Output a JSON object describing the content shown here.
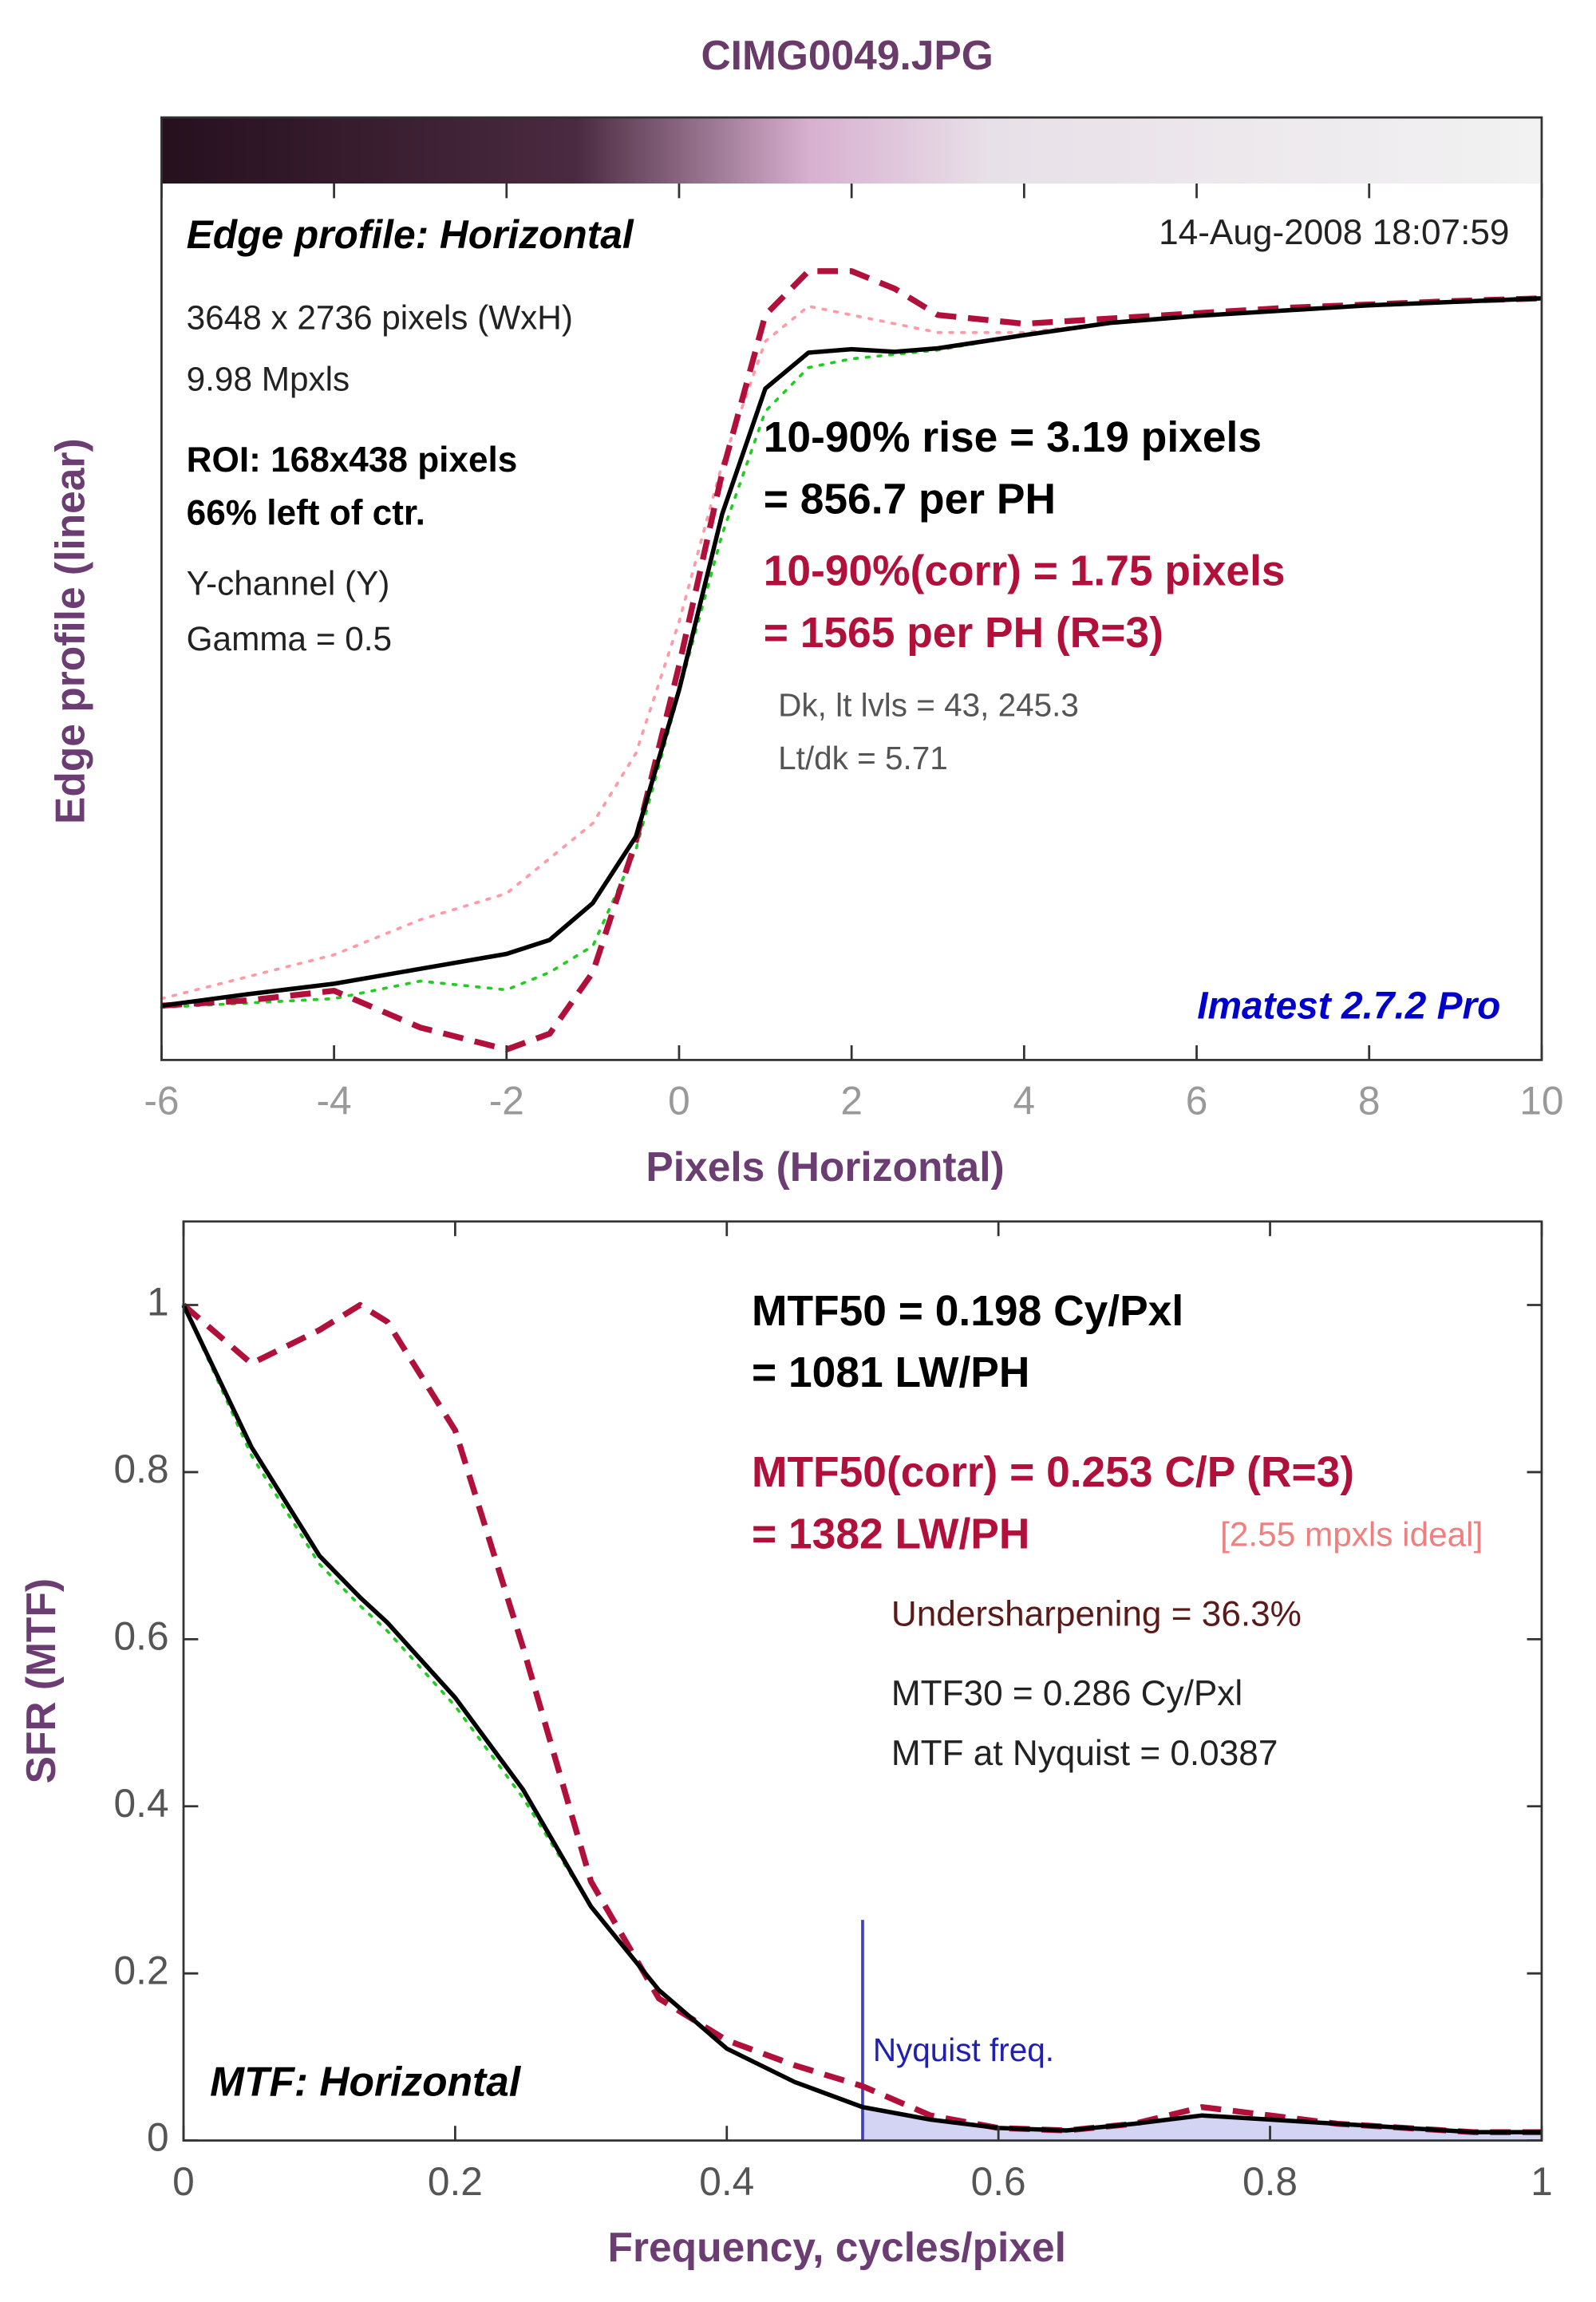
{
  "chart_data": [
    {
      "type": "line",
      "title": "CIMG0049.JPG",
      "xlabel": "Pixels (Horizontal)",
      "ylabel": "Edge profile (linear)",
      "xlim": [
        -6,
        10
      ],
      "xticks": [
        -6,
        -4,
        -2,
        0,
        2,
        4,
        6,
        8,
        10
      ],
      "ylim": [
        0,
        1
      ],
      "x": [
        -6,
        -5,
        -4,
        -3,
        -2,
        -1.5,
        -1,
        -0.5,
        0,
        0.5,
        1,
        1.5,
        2,
        2.5,
        3,
        4,
        5,
        6,
        7,
        8,
        9,
        10
      ],
      "series": [
        {
          "color": "#ff9aa8",
          "style": "dotted",
          "values": [
            0.07,
            0.095,
            0.12,
            0.16,
            0.19,
            0.23,
            0.27,
            0.35,
            0.5,
            0.68,
            0.82,
            0.86,
            0.85,
            0.84,
            0.83,
            0.83,
            0.841,
            0.849,
            0.855,
            0.861,
            0.865,
            0.869
          ]
        },
        {
          "color": "#22cc22",
          "style": "dotted",
          "values": [
            0.06,
            0.065,
            0.07,
            0.09,
            0.08,
            0.1,
            0.13,
            0.24,
            0.42,
            0.6,
            0.74,
            0.79,
            0.8,
            0.805,
            0.81,
            0.827,
            0.841,
            0.849,
            0.855,
            0.861,
            0.865,
            0.869
          ]
        },
        {
          "color": "#b0103a",
          "style": "dashed",
          "values": [
            0.062,
            0.068,
            0.079,
            0.037,
            0.012,
            0.03,
            0.1,
            0.25,
            0.45,
            0.67,
            0.85,
            0.9,
            0.9,
            0.88,
            0.85,
            0.84,
            0.846,
            0.852,
            0.858,
            0.862,
            0.866,
            0.869
          ]
        },
        {
          "color": "#000000",
          "style": "solid",
          "values": [
            0.062,
            0.075,
            0.087,
            0.104,
            0.121,
            0.137,
            0.179,
            0.255,
            0.422,
            0.623,
            0.766,
            0.807,
            0.811,
            0.808,
            0.812,
            0.827,
            0.841,
            0.849,
            0.855,
            0.861,
            0.865,
            0.869
          ]
        }
      ],
      "annotations": [
        "Edge profile: Horizontal",
        "14-Aug-2008 18:07:59",
        "3648 x 2736 pixels (WxH)",
        "9.98 Mpxls",
        "ROI:  168x438 pixels",
        "66% left of ctr.",
        "Y-channel  (Y)",
        "Gamma = 0.5",
        "10-90% rise = 3.19 pixels",
        "= 856.7 per PH",
        "10-90%(corr) = 1.75 pixels",
        "= 1565 per PH  (R=3)",
        "Dk, lt lvls = 43, 245.3",
        "Lt/dk = 5.71",
        "Imatest 2.7.2 Pro"
      ]
    },
    {
      "type": "line",
      "xlabel": "Frequency, cycles/pixel",
      "ylabel": "SFR (MTF)",
      "xlim": [
        0,
        1
      ],
      "xticks": [
        0,
        0.2,
        0.4,
        0.6,
        0.8,
        1
      ],
      "ylim": [
        0,
        1.1
      ],
      "yticks": [
        0,
        0.2,
        0.4,
        0.6,
        0.8,
        1
      ],
      "x": [
        0,
        0.05,
        0.1,
        0.13,
        0.15,
        0.2,
        0.25,
        0.3,
        0.35,
        0.4,
        0.45,
        0.5,
        0.55,
        0.6,
        0.65,
        0.7,
        0.75,
        0.8,
        0.85,
        0.9,
        0.95,
        1
      ],
      "series": [
        {
          "color": "#22cc22",
          "style": "dotted",
          "values": [
            1.0,
            0.82,
            0.69,
            0.64,
            0.61,
            0.52,
            0.41,
            0.28,
            0.18,
            0.11,
            0.07,
            0.04,
            0.025,
            0.015,
            0.012,
            0.02,
            0.03,
            0.025,
            0.02,
            0.015,
            0.01,
            0.01
          ]
        },
        {
          "color": "#b0103a",
          "style": "dashed",
          "values": [
            1.0,
            0.93,
            0.97,
            1.0,
            0.98,
            0.85,
            0.59,
            0.31,
            0.17,
            0.12,
            0.09,
            0.065,
            0.03,
            0.015,
            0.012,
            0.02,
            0.04,
            0.03,
            0.02,
            0.015,
            0.01,
            0.01
          ]
        },
        {
          "color": "#000000",
          "style": "solid",
          "values": [
            1.0,
            0.83,
            0.7,
            0.65,
            0.62,
            0.53,
            0.42,
            0.28,
            0.18,
            0.11,
            0.07,
            0.04,
            0.025,
            0.015,
            0.012,
            0.02,
            0.03,
            0.025,
            0.02,
            0.015,
            0.01,
            0.01
          ]
        }
      ],
      "nyquist": 0.5,
      "nyquist_label": "Nyquist freq.",
      "annotations": [
        "MTF50 = 0.198 Cy/Pxl",
        "= 1081 LW/PH",
        "MTF50(corr) = 0.253 C/P  (R=3)",
        "= 1382 LW/PH",
        "[2.55 mpxls ideal]",
        "Undersharpening = 36.3%",
        "MTF30 = 0.286 Cy/Pxl",
        "MTF at Nyquist = 0.0387",
        "MTF: Horizontal"
      ]
    }
  ]
}
